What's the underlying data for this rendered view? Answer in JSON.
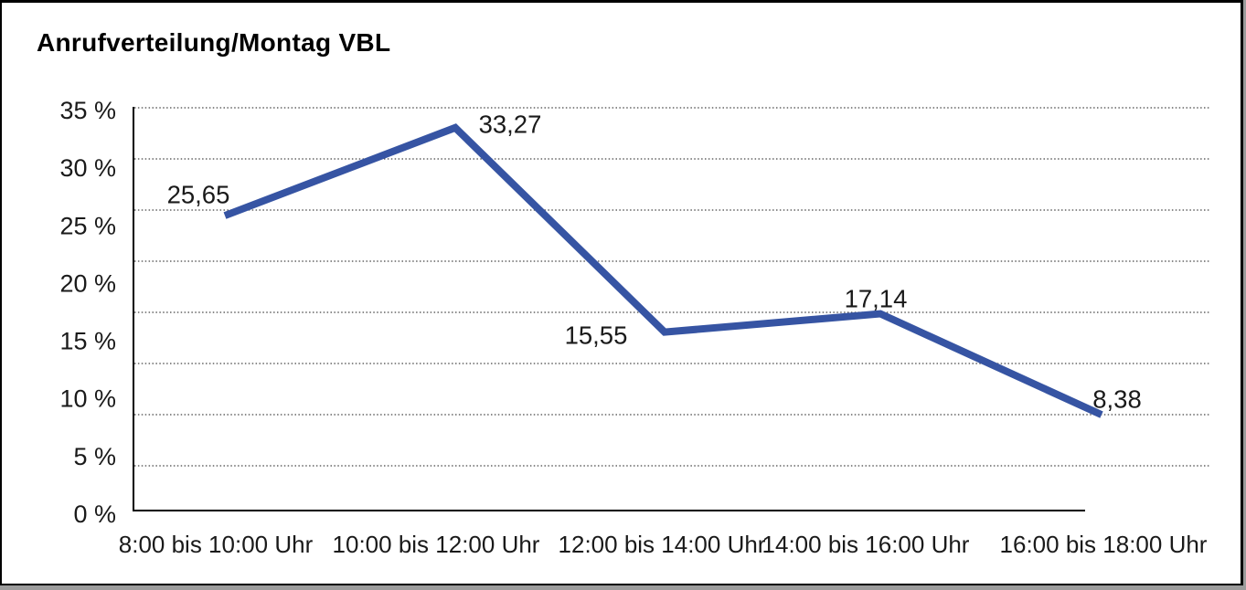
{
  "chart_data": {
    "type": "line",
    "title": "Anrufverteilung/Montag VBL",
    "categories": [
      "8:00 bis 10:00 Uhr",
      "10:00 bis 12:00 Uhr",
      "12:00 bis 14:00 Uhr",
      "14:00 bis 16:00 Uhr",
      "16:00 bis 18:00 Uhr"
    ],
    "values": [
      25.65,
      33.27,
      15.55,
      17.14,
      8.38
    ],
    "point_labels": [
      "25,65",
      "33,27",
      "15,55",
      "17,14",
      "8,38"
    ],
    "unit": "%",
    "xlabel": "",
    "ylabel": "",
    "ylim": [
      0,
      35
    ],
    "y_tick_step": 5,
    "y_tick_labels_top_to_bottom": [
      "35 %",
      "30 %",
      "25 %",
      "20 %",
      "15 %",
      "10 %",
      "5 %",
      "0 %"
    ],
    "grid": "horizontal-dotted",
    "legend": "none",
    "colors": {
      "line": "#3654A3",
      "axis": "#000000",
      "grid": "#444444",
      "text": "#1a1a1a",
      "frame_border": "#000000",
      "frame_shadow": "#9c9c9c",
      "background": "#ffffff"
    }
  }
}
